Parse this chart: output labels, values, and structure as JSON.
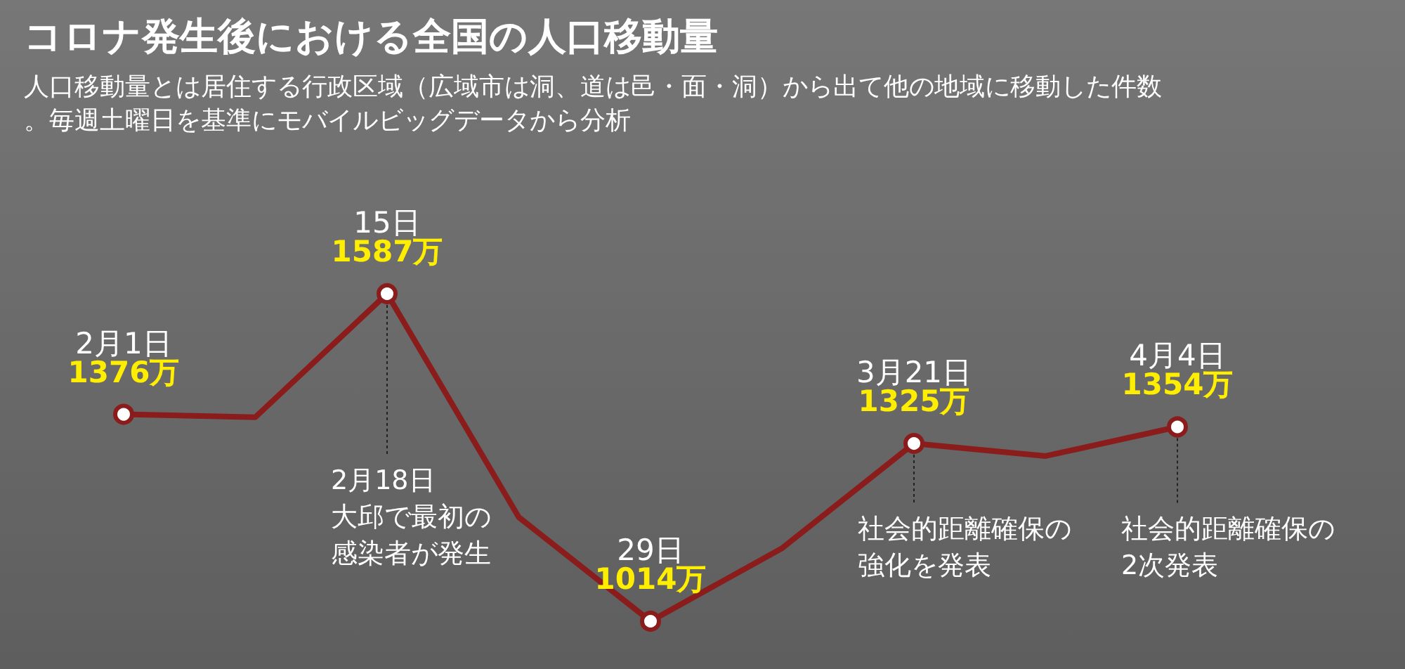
{
  "chart_data": {
    "type": "line",
    "title": "コロナ発生後における全国の人口移動量",
    "subtitle": "人口移動量とは居住する行政区域（広域市は洞、道は邑・面・洞）から出て他の地域に移動した件数。毎週土曜日を基準にモバイルビッグデータから分析",
    "categories": [
      null,
      null,
      null,
      null,
      null,
      null,
      null,
      null,
      null
    ],
    "values": [
      1376,
      1371,
      1587,
      1196,
      1014,
      1142,
      1325,
      1303,
      1354
    ],
    "value_labels": [
      "1376万",
      null,
      "1587万",
      null,
      "1014万",
      null,
      "1325万",
      null,
      "1354万"
    ],
    "color": "#8b1c1c",
    "marker": "circle",
    "line_style": "solid",
    "annotations": [
      "2月1日",
      "15日",
      "29日",
      "3月21日",
      "4月4日",
      "2月18日大邱で最初の感染者が発生",
      "社会的距離確保の強化を発表",
      "社会的距離確保の2次発表"
    ]
  }
}
